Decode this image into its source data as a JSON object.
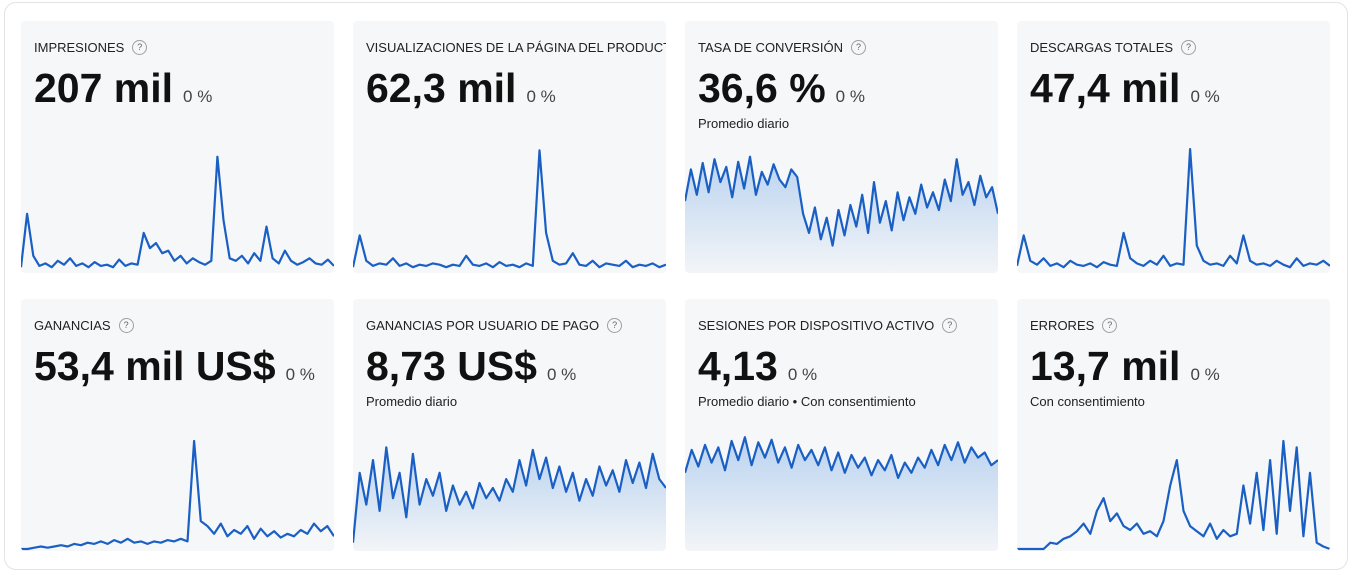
{
  "help_icon": "?",
  "cards": [
    {
      "title": "IMPRESIONES",
      "value": "207 mil",
      "change": "0 %",
      "fill": false,
      "spark": [
        3,
        45,
        12,
        4,
        6,
        3,
        8,
        5,
        10,
        4,
        6,
        3,
        7,
        4,
        5,
        3,
        9,
        4,
        6,
        5,
        30,
        18,
        22,
        14,
        16,
        8,
        12,
        6,
        10,
        7,
        5,
        8,
        90,
        40,
        10,
        8,
        12,
        6,
        14,
        8,
        35,
        10,
        6,
        16,
        8,
        5,
        7,
        10,
        6,
        5,
        9,
        4
      ]
    },
    {
      "title": "VISUALIZACIONES DE LA PÁGINA DEL PRODUCTO",
      "value": "62,3 mil",
      "change": "0 %",
      "fill": false,
      "spark": [
        3,
        28,
        8,
        4,
        6,
        5,
        10,
        4,
        6,
        3,
        5,
        4,
        6,
        5,
        3,
        5,
        4,
        12,
        5,
        4,
        6,
        3,
        7,
        4,
        5,
        3,
        6,
        4,
        95,
        30,
        8,
        5,
        6,
        14,
        5,
        4,
        8,
        3,
        6,
        5,
        4,
        8,
        3,
        5,
        4,
        6,
        3,
        5
      ]
    },
    {
      "title": "TASA DE CONVERSIÓN",
      "value": "36,6 %",
      "change": "0 %",
      "subtitle": "Promedio diario",
      "fill": true,
      "spark": [
        55,
        80,
        60,
        85,
        62,
        88,
        70,
        82,
        58,
        86,
        65,
        90,
        60,
        78,
        68,
        84,
        72,
        66,
        80,
        74,
        45,
        30,
        50,
        25,
        42,
        20,
        48,
        28,
        52,
        35,
        60,
        30,
        70,
        38,
        55,
        32,
        62,
        40,
        58,
        45,
        68,
        50,
        62,
        48,
        72,
        55,
        88,
        60,
        70,
        52,
        75,
        58,
        66,
        45
      ]
    },
    {
      "title": "DESCARGAS TOTALES",
      "value": "47,4 mil",
      "change": "0 %",
      "fill": false,
      "spark": [
        4,
        28,
        8,
        5,
        10,
        4,
        6,
        3,
        8,
        5,
        4,
        6,
        3,
        7,
        5,
        4,
        30,
        10,
        6,
        4,
        8,
        5,
        12,
        4,
        6,
        5,
        96,
        20,
        8,
        5,
        6,
        4,
        12,
        6,
        28,
        8,
        5,
        6,
        4,
        8,
        5,
        3,
        10,
        4,
        6,
        5,
        8,
        4
      ]
    },
    {
      "title": "GANANCIAS",
      "value": "53,4 mil US$",
      "change": "0 %",
      "fill": false,
      "spark": [
        0,
        0,
        1,
        2,
        1,
        2,
        3,
        2,
        4,
        3,
        5,
        4,
        6,
        4,
        7,
        5,
        8,
        5,
        6,
        4,
        6,
        5,
        7,
        6,
        8,
        6,
        85,
        22,
        18,
        12,
        20,
        10,
        15,
        12,
        18,
        8,
        16,
        10,
        14,
        9,
        12,
        10,
        15,
        12,
        20,
        14,
        18,
        10
      ]
    },
    {
      "title": "GANANCIAS POR USUARIO DE PAGO",
      "value": "8,73 US$",
      "change": "0 %",
      "subtitle": "Promedio diario",
      "fill": true,
      "spark": [
        5,
        60,
        35,
        70,
        30,
        80,
        40,
        60,
        25,
        75,
        35,
        55,
        42,
        60,
        30,
        50,
        35,
        45,
        32,
        52,
        40,
        48,
        38,
        55,
        45,
        70,
        50,
        78,
        55,
        72,
        48,
        65,
        45,
        60,
        38,
        55,
        42,
        65,
        50,
        62,
        45,
        70,
        52,
        68,
        48,
        75,
        55,
        48
      ]
    },
    {
      "title": "SESIONES POR DISPOSITIVO ACTIVO",
      "value": "4,13",
      "change": "0 %",
      "subtitle": "Promedio diario • Con consentimiento",
      "fill": true,
      "spark": [
        60,
        78,
        65,
        82,
        68,
        80,
        62,
        85,
        70,
        88,
        66,
        84,
        72,
        86,
        68,
        80,
        64,
        82,
        70,
        78,
        66,
        80,
        62,
        76,
        60,
        74,
        64,
        72,
        58,
        70,
        62,
        74,
        56,
        68,
        60,
        72,
        64,
        78,
        66,
        82,
        70,
        84,
        68,
        80,
        72,
        76,
        66,
        70
      ]
    },
    {
      "title": "ERRORES",
      "value": "13,7 mil",
      "change": "0 %",
      "subtitle": "Con consentimiento",
      "fill": false,
      "spark": [
        0,
        0,
        0,
        0,
        0,
        5,
        4,
        8,
        10,
        14,
        20,
        12,
        30,
        40,
        22,
        28,
        18,
        15,
        20,
        12,
        14,
        10,
        22,
        50,
        70,
        30,
        18,
        14,
        10,
        20,
        8,
        15,
        10,
        12,
        50,
        20,
        60,
        15,
        70,
        12,
        85,
        30,
        80,
        10,
        60,
        5,
        2,
        0
      ]
    }
  ]
}
